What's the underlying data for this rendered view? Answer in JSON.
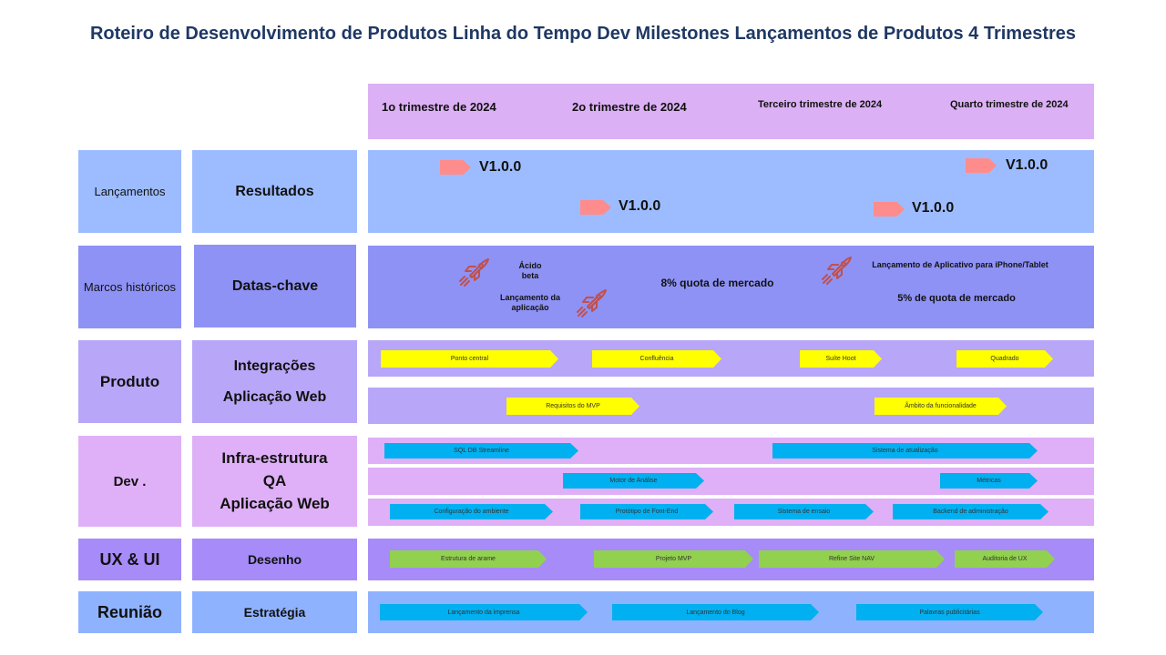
{
  "title": "Roteiro de Desenvolvimento de Produtos Linha do Tempo Dev Milestones Lançamentos de Produtos 4 Trimestres",
  "quarters": [
    "1o trimestre de 2024",
    "2o trimestre de 2024",
    "Terceiro trimestre de 2024",
    "Quarto trimestre de 2024"
  ],
  "rows": {
    "lancamentos": {
      "category": "Lançamentos",
      "subcategory": "Resultados"
    },
    "marcos": {
      "category": "Marcos históricos",
      "subcategory": "Datas-chave"
    },
    "produto": {
      "category": "Produto",
      "sub1": "Integrações",
      "sub2": "Aplicação Web"
    },
    "dev": {
      "category": "Dev .",
      "sub1": "Infra-estrutura",
      "sub2": "QA",
      "sub3": "Aplicação Web"
    },
    "ux": {
      "category": "UX & UI",
      "subcategory": "Desenho"
    },
    "reuniao": {
      "category": "Reunião",
      "subcategory": "Estratégia"
    }
  },
  "releases": [
    "V1.0.0",
    "V1.0.0",
    "V1.0.0",
    "V1.0.0"
  ],
  "milestones": {
    "acido_beta_1": "Ácido",
    "acido_beta_2": "beta",
    "lancamento_app_1": "Lançamento da",
    "lancamento_app_2": "aplicação",
    "quota8": "8% quota de mercado",
    "iphone": "Lançamento de Aplicativo para iPhone/Tablet",
    "quota5": "5% de quota de mercado"
  },
  "produto_integracoes": [
    "Ponto central",
    "Confluência",
    "Suíte Hoot",
    "Quadrado"
  ],
  "produto_web": [
    "Requisitos do MVP",
    "Âmbito da funcionalidade"
  ],
  "dev_infra": [
    "SQL DB Streamline",
    "Sistema de atualização"
  ],
  "dev_qa": [
    "Motor de Análise",
    "Métricas"
  ],
  "dev_web": [
    "Configuração do ambiente",
    "Protótipo de Font-End",
    "Sistema de ensaio",
    "Backend de administração"
  ],
  "ux": [
    "Estrutura de arame",
    "Projeto MVP",
    "Refine Site NAV",
    "Auditoria de UX"
  ],
  "reuniao": [
    "Lançamento da imprensa",
    "Lançamento do Blog",
    "Palavras publicitárias"
  ],
  "colors": {
    "title": "#1f3864",
    "header_band": "#dcb0f5",
    "lancamentos": "#9dbcff",
    "marcos": "#8e92f5",
    "produto_cat": "#b8a6f8",
    "dev_cat": "#dfb0f7",
    "ux_cat": "#a78bf8",
    "reuniao_cat": "#8fb2ff",
    "yellow": "#ffff00",
    "blue": "#00b0f0",
    "green": "#92d050",
    "release_arrow": "#ff8c8c",
    "rocket": "#c0504d"
  },
  "icons": {
    "release": "arrow-right-icon",
    "rocket": "rocket-icon"
  }
}
